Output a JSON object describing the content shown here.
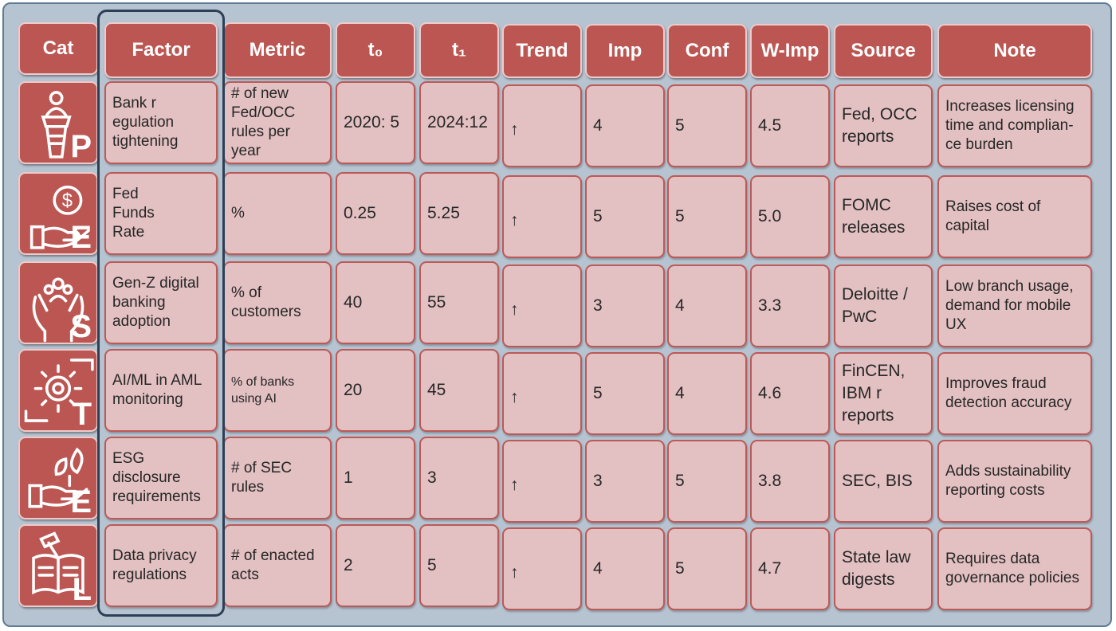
{
  "headers": [
    "Cat",
    "Factor",
    "Metric",
    "t₀",
    "t₁",
    "Trend",
    "Imp",
    "Conf",
    "W-Imp",
    "Source",
    "Note"
  ],
  "rows": [
    {
      "cat": "P",
      "icon": "podium-speaker-icon",
      "factor": "Bank r\negulation\ntightening",
      "metric": "# of new\nFed/OCC\nrules per year",
      "t0": "2020: 5",
      "t1": "2024:12",
      "trend": "↑",
      "imp": "4",
      "conf": "5",
      "wimp": "4.5",
      "source": "Fed, OCC\nreports",
      "note": "Increases licensing\ntime and complian-\nce burden"
    },
    {
      "cat": "E",
      "icon": "hand-dollar-coin-icon",
      "factor": "Fed\nFunds\nRate",
      "metric": "%",
      "t0": "0.25",
      "t1": "5.25",
      "trend": "↑",
      "imp": "5",
      "conf": "5",
      "wimp": "5.0",
      "source": "FOMC\nreleases",
      "note": "Raises cost of\ncapital"
    },
    {
      "cat": "S",
      "icon": "hands-people-icon",
      "factor": "Gen-Z digital\nbanking\nadoption",
      "metric": "% of\ncustomers",
      "t0": "40",
      "t1": "55",
      "trend": "↑",
      "imp": "3",
      "conf": "4",
      "wimp": "3.3",
      "source": "Deloitte /\nPwC",
      "note": "Low branch usage,\ndemand for mobile\nUX"
    },
    {
      "cat": "T",
      "icon": "hands-gear-icon",
      "factor": "AI/ML in AML\nmonitoring",
      "metric": "% of banks\nusing AI",
      "t0": "20",
      "t1": "45",
      "trend": "↑",
      "imp": "5",
      "conf": "4",
      "wimp": "4.6",
      "source": "FinCEN,\nIBM r\nreports",
      "note": "Improves fraud\ndetection accuracy"
    },
    {
      "cat": "E",
      "icon": "hand-leaf-icon",
      "factor": "ESG\ndisclosure\nrequirements",
      "metric": "# of SEC\nrules",
      "t0": "1",
      "t1": "3",
      "trend": "↑",
      "imp": "3",
      "conf": "5",
      "wimp": "3.8",
      "source": "SEC, BIS",
      "note": "Adds sustainability\nreporting costs"
    },
    {
      "cat": "L",
      "icon": "gavel-book-icon",
      "factor": "Data privacy\nregulations",
      "metric": "# of enacted\nacts",
      "t0": "2",
      "t1": "5",
      "trend": "↑",
      "imp": "4",
      "conf": "5",
      "wimp": "4.7",
      "source": "State law\ndigests",
      "note": "Requires data\ngovernance policies"
    }
  ],
  "colors": {
    "header": "#bb5652",
    "cell": "#e3c0c1",
    "border": "#bb5a57",
    "panel": "#b6c3d1",
    "highlight": "#2c3f55"
  }
}
